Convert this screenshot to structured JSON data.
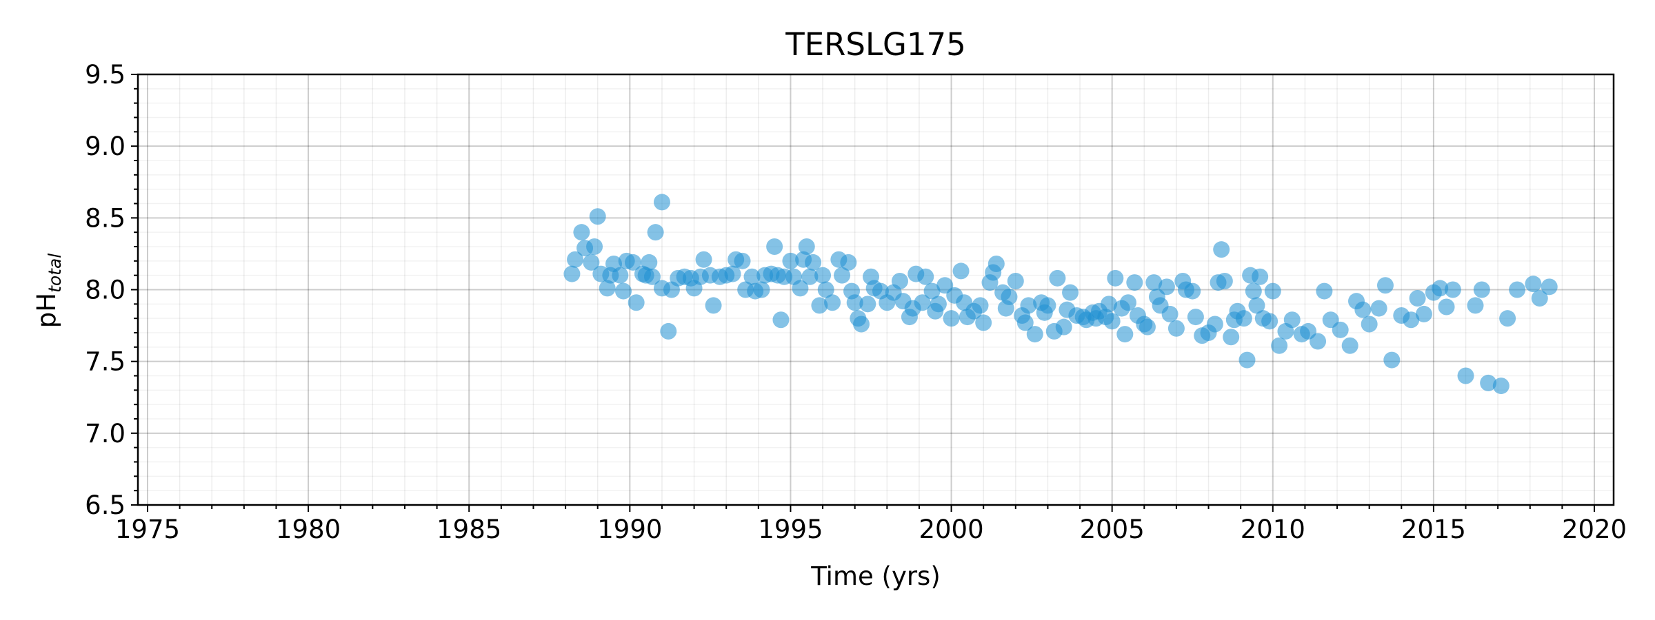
{
  "chart_data": {
    "type": "scatter",
    "title": "TERSLG175",
    "xlabel": "Time (yrs)",
    "ylabel_main": "pH",
    "ylabel_sub": "total",
    "xlim": [
      1974.7,
      2020.6
    ],
    "ylim": [
      6.5,
      9.5
    ],
    "xticks": [
      1975,
      1980,
      1985,
      1990,
      1995,
      2000,
      2005,
      2010,
      2015,
      2020
    ],
    "yticks": [
      6.5,
      7.0,
      7.5,
      8.0,
      8.5,
      9.0,
      9.5
    ],
    "ytick_labels": [
      "6.5",
      "7.0",
      "7.5",
      "8.0",
      "8.5",
      "9.0",
      "9.5"
    ],
    "grid": true,
    "marker_color": "#1f8fd1",
    "marker_opacity": 0.55,
    "points": [
      [
        1988.2,
        8.11
      ],
      [
        1988.3,
        8.21
      ],
      [
        1988.5,
        8.4
      ],
      [
        1988.6,
        8.29
      ],
      [
        1988.8,
        8.19
      ],
      [
        1988.9,
        8.3
      ],
      [
        1989.0,
        8.51
      ],
      [
        1989.1,
        8.11
      ],
      [
        1989.3,
        8.01
      ],
      [
        1989.4,
        8.1
      ],
      [
        1989.5,
        8.18
      ],
      [
        1989.7,
        8.1
      ],
      [
        1989.8,
        7.99
      ],
      [
        1989.9,
        8.2
      ],
      [
        1990.1,
        8.19
      ],
      [
        1990.2,
        7.91
      ],
      [
        1990.4,
        8.11
      ],
      [
        1990.5,
        8.1
      ],
      [
        1990.6,
        8.19
      ],
      [
        1990.7,
        8.09
      ],
      [
        1990.8,
        8.4
      ],
      [
        1991.0,
        8.61
      ],
      [
        1991.0,
        8.01
      ],
      [
        1991.2,
        7.71
      ],
      [
        1991.3,
        8.0
      ],
      [
        1991.5,
        8.08
      ],
      [
        1991.7,
        8.09
      ],
      [
        1991.9,
        8.08
      ],
      [
        1992.0,
        8.01
      ],
      [
        1992.2,
        8.09
      ],
      [
        1992.3,
        8.21
      ],
      [
        1992.5,
        8.1
      ],
      [
        1992.6,
        7.89
      ],
      [
        1992.8,
        8.09
      ],
      [
        1993.0,
        8.1
      ],
      [
        1993.2,
        8.11
      ],
      [
        1993.3,
        8.21
      ],
      [
        1993.5,
        8.2
      ],
      [
        1993.6,
        8.0
      ],
      [
        1993.8,
        8.09
      ],
      [
        1993.9,
        7.99
      ],
      [
        1994.1,
        8.0
      ],
      [
        1994.2,
        8.1
      ],
      [
        1994.4,
        8.11
      ],
      [
        1994.5,
        8.3
      ],
      [
        1994.6,
        8.1
      ],
      [
        1994.7,
        7.79
      ],
      [
        1994.8,
        8.09
      ],
      [
        1995.0,
        8.2
      ],
      [
        1995.1,
        8.09
      ],
      [
        1995.3,
        8.01
      ],
      [
        1995.4,
        8.21
      ],
      [
        1995.5,
        8.3
      ],
      [
        1995.6,
        8.09
      ],
      [
        1995.7,
        8.19
      ],
      [
        1995.9,
        7.89
      ],
      [
        1996.0,
        8.1
      ],
      [
        1996.1,
        8.0
      ],
      [
        1996.3,
        7.91
      ],
      [
        1996.5,
        8.21
      ],
      [
        1996.6,
        8.1
      ],
      [
        1996.8,
        8.19
      ],
      [
        1996.9,
        7.99
      ],
      [
        1997.0,
        7.91
      ],
      [
        1997.1,
        7.8
      ],
      [
        1997.2,
        7.76
      ],
      [
        1997.4,
        7.9
      ],
      [
        1997.5,
        8.09
      ],
      [
        1997.6,
        8.01
      ],
      [
        1997.8,
        7.99
      ],
      [
        1998.0,
        7.91
      ],
      [
        1998.2,
        7.98
      ],
      [
        1998.4,
        8.06
      ],
      [
        1998.5,
        7.92
      ],
      [
        1998.7,
        7.81
      ],
      [
        1998.8,
        7.87
      ],
      [
        1998.9,
        8.11
      ],
      [
        1999.1,
        7.91
      ],
      [
        1999.2,
        8.09
      ],
      [
        1999.4,
        7.99
      ],
      [
        1999.5,
        7.85
      ],
      [
        1999.6,
        7.9
      ],
      [
        1999.8,
        8.03
      ],
      [
        2000.0,
        7.8
      ],
      [
        2000.1,
        7.96
      ],
      [
        2000.3,
        8.13
      ],
      [
        2000.4,
        7.91
      ],
      [
        2000.5,
        7.81
      ],
      [
        2000.7,
        7.85
      ],
      [
        2000.9,
        7.89
      ],
      [
        2001.0,
        7.77
      ],
      [
        2001.2,
        8.05
      ],
      [
        2001.3,
        8.12
      ],
      [
        2001.4,
        8.18
      ],
      [
        2001.6,
        7.98
      ],
      [
        2001.7,
        7.87
      ],
      [
        2001.8,
        7.95
      ],
      [
        2002.0,
        8.06
      ],
      [
        2002.2,
        7.82
      ],
      [
        2002.3,
        7.77
      ],
      [
        2002.4,
        7.89
      ],
      [
        2002.6,
        7.69
      ],
      [
        2002.8,
        7.91
      ],
      [
        2002.9,
        7.84
      ],
      [
        2003.0,
        7.89
      ],
      [
        2003.2,
        7.71
      ],
      [
        2003.3,
        8.08
      ],
      [
        2003.5,
        7.74
      ],
      [
        2003.6,
        7.86
      ],
      [
        2003.7,
        7.98
      ],
      [
        2003.9,
        7.82
      ],
      [
        2004.1,
        7.81
      ],
      [
        2004.2,
        7.79
      ],
      [
        2004.4,
        7.84
      ],
      [
        2004.5,
        7.8
      ],
      [
        2004.6,
        7.85
      ],
      [
        2004.8,
        7.81
      ],
      [
        2004.9,
        7.9
      ],
      [
        2005.0,
        7.78
      ],
      [
        2005.1,
        8.08
      ],
      [
        2005.3,
        7.87
      ],
      [
        2005.4,
        7.69
      ],
      [
        2005.5,
        7.91
      ],
      [
        2005.7,
        8.05
      ],
      [
        2005.8,
        7.82
      ],
      [
        2006.0,
        7.76
      ],
      [
        2006.1,
        7.74
      ],
      [
        2006.3,
        8.05
      ],
      [
        2006.4,
        7.95
      ],
      [
        2006.5,
        7.89
      ],
      [
        2006.7,
        8.02
      ],
      [
        2006.8,
        7.83
      ],
      [
        2007.0,
        7.73
      ],
      [
        2007.2,
        8.06
      ],
      [
        2007.3,
        8.0
      ],
      [
        2007.5,
        7.99
      ],
      [
        2007.6,
        7.81
      ],
      [
        2007.8,
        7.68
      ],
      [
        2008.0,
        7.7
      ],
      [
        2008.2,
        7.76
      ],
      [
        2008.3,
        8.05
      ],
      [
        2008.4,
        8.28
      ],
      [
        2008.5,
        8.06
      ],
      [
        2008.7,
        7.67
      ],
      [
        2008.8,
        7.79
      ],
      [
        2008.9,
        7.85
      ],
      [
        2009.1,
        7.8
      ],
      [
        2009.2,
        7.51
      ],
      [
        2009.3,
        8.1
      ],
      [
        2009.4,
        7.99
      ],
      [
        2009.5,
        7.89
      ],
      [
        2009.6,
        8.09
      ],
      [
        2009.7,
        7.8
      ],
      [
        2009.9,
        7.78
      ],
      [
        2010.0,
        7.99
      ],
      [
        2010.2,
        7.61
      ],
      [
        2010.4,
        7.71
      ],
      [
        2010.6,
        7.79
      ],
      [
        2010.9,
        7.69
      ],
      [
        2011.1,
        7.71
      ],
      [
        2011.4,
        7.64
      ],
      [
        2011.6,
        7.99
      ],
      [
        2011.8,
        7.79
      ],
      [
        2012.1,
        7.72
      ],
      [
        2012.4,
        7.61
      ],
      [
        2012.6,
        7.92
      ],
      [
        2012.8,
        7.86
      ],
      [
        2013.0,
        7.76
      ],
      [
        2013.3,
        7.87
      ],
      [
        2013.5,
        8.03
      ],
      [
        2013.7,
        7.51
      ],
      [
        2014.0,
        7.82
      ],
      [
        2014.3,
        7.79
      ],
      [
        2014.5,
        7.94
      ],
      [
        2014.7,
        7.83
      ],
      [
        2015.0,
        7.98
      ],
      [
        2015.2,
        8.01
      ],
      [
        2015.4,
        7.88
      ],
      [
        2015.6,
        8.0
      ],
      [
        2016.0,
        7.4
      ],
      [
        2016.3,
        7.89
      ],
      [
        2016.5,
        8.0
      ],
      [
        2016.7,
        7.35
      ],
      [
        2017.1,
        7.33
      ],
      [
        2017.3,
        7.8
      ],
      [
        2017.6,
        8.0
      ],
      [
        2018.1,
        8.04
      ],
      [
        2018.3,
        7.94
      ],
      [
        2018.6,
        8.02
      ]
    ]
  }
}
